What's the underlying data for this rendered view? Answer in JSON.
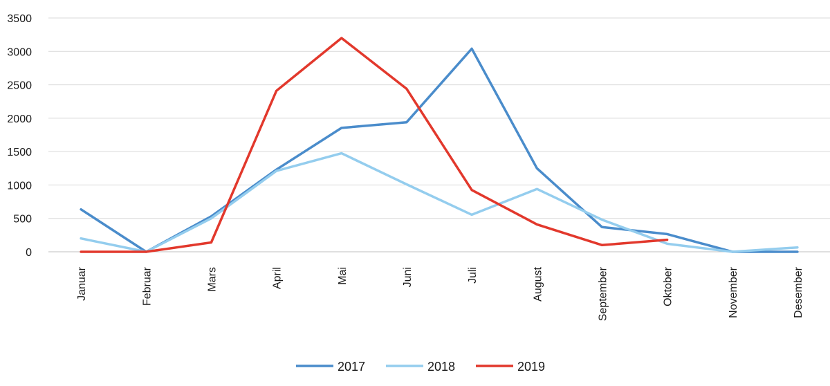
{
  "chart_data": {
    "type": "line",
    "title": "",
    "xlabel": "",
    "ylabel": "",
    "ylim": [
      0,
      3500
    ],
    "yticks": [
      0,
      500,
      1000,
      1500,
      2000,
      2500,
      3000,
      3500
    ],
    "grid": "horizontal",
    "legend_position": "bottom-center",
    "categories": [
      "Januar",
      "Februar",
      "Mars",
      "April",
      "Mai",
      "Juni",
      "Juli",
      "August",
      "September",
      "Oktober",
      "November",
      "Desember"
    ],
    "series": [
      {
        "name": "2017",
        "color": "#4a8ccb",
        "values": [
          635,
          0,
          530,
          1230,
          1855,
          1940,
          3040,
          1250,
          370,
          265,
          0,
          0
        ]
      },
      {
        "name": "2018",
        "color": "#94cdee",
        "values": [
          200,
          0,
          500,
          1210,
          1475,
          1010,
          555,
          940,
          480,
          120,
          0,
          65
        ]
      },
      {
        "name": "2019",
        "color": "#e2382c",
        "values": [
          0,
          0,
          140,
          2410,
          3200,
          2440,
          925,
          410,
          100,
          180,
          null,
          null
        ]
      }
    ]
  }
}
